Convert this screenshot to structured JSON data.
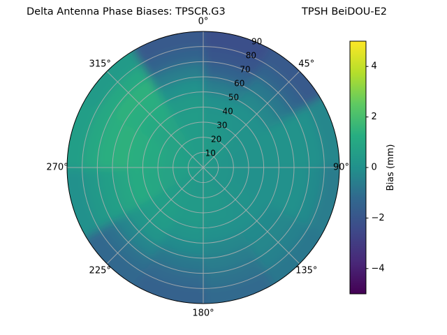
{
  "chart_data": {
    "type": "heatmap",
    "projection": "polar",
    "title_left": "Delta Antenna Phase Biases: TPSCR.G3",
    "title_right": "TPSH BeiDOU-E2",
    "colorbar": {
      "label": "Bias (mm)",
      "range": [
        -5,
        5
      ],
      "colormap": "viridis",
      "stops": [
        "#440154",
        "#482878",
        "#3e4989",
        "#31688e",
        "#21918c",
        "#27ad81",
        "#5ec962",
        "#b5de2b",
        "#fde725"
      ],
      "ticks": [
        {
          "value": 4,
          "label": "4"
        },
        {
          "value": 2,
          "label": "2"
        },
        {
          "value": 0,
          "label": "0"
        },
        {
          "value": -2,
          "label": "−2"
        },
        {
          "value": -4,
          "label": "−4"
        }
      ]
    },
    "azimuth_tick_labels": [
      {
        "deg": 0,
        "label": "0°"
      },
      {
        "deg": 45,
        "label": "45°"
      },
      {
        "deg": 90,
        "label": "90°"
      },
      {
        "deg": 135,
        "label": "135°"
      },
      {
        "deg": 180,
        "label": "180°"
      },
      {
        "deg": 225,
        "label": "225°"
      },
      {
        "deg": 270,
        "label": "270°"
      },
      {
        "deg": 315,
        "label": "315°"
      }
    ],
    "radial_tick_labels": [
      {
        "r": 10,
        "label": "10"
      },
      {
        "r": 20,
        "label": "20"
      },
      {
        "r": 30,
        "label": "30"
      },
      {
        "r": 40,
        "label": "40"
      },
      {
        "r": 50,
        "label": "50"
      },
      {
        "r": 60,
        "label": "60"
      },
      {
        "r": 70,
        "label": "70"
      },
      {
        "r": 80,
        "label": "80"
      },
      {
        "r": 90,
        "label": "90"
      }
    ],
    "radial_label_azimuth_deg": 22.5,
    "azimuth_bin_edges_deg": [
      0,
      30,
      60,
      90,
      120,
      150,
      180,
      210,
      240,
      270,
      300,
      330,
      360
    ],
    "radial_bin_edges_deg": [
      0,
      10,
      20,
      30,
      40,
      50,
      60,
      70,
      80,
      90
    ],
    "bias_values_mm": [
      [
        0.4,
        0.4,
        0.3,
        0.3,
        0.3,
        0.3,
        0.3,
        0.4,
        0.5,
        0.5,
        0.5,
        0.4
      ],
      [
        0.4,
        0.3,
        0.2,
        0.2,
        0.2,
        0.3,
        0.3,
        0.4,
        0.6,
        0.7,
        0.6,
        0.5
      ],
      [
        0.3,
        0.2,
        0.1,
        0.1,
        0.2,
        0.3,
        0.4,
        0.5,
        0.8,
        0.9,
        0.8,
        0.5
      ],
      [
        0.2,
        0.1,
        0.1,
        0.0,
        0.1,
        0.2,
        0.4,
        0.6,
        1.0,
        1.1,
        0.9,
        0.5
      ],
      [
        0.0,
        0.0,
        0.1,
        0.0,
        0.0,
        0.0,
        0.2,
        0.5,
        1.1,
        1.3,
        1.1,
        0.4
      ],
      [
        -0.6,
        -0.3,
        0.1,
        0.0,
        -0.2,
        -0.3,
        -0.2,
        0.2,
        0.9,
        1.4,
        1.3,
        0.0
      ],
      [
        -1.4,
        -0.8,
        0.1,
        0.0,
        -0.3,
        -0.6,
        -0.8,
        -0.4,
        0.6,
        1.3,
        1.4,
        -0.6
      ],
      [
        -2.0,
        -1.4,
        0.0,
        -0.2,
        -0.5,
        -0.9,
        -1.2,
        -1.0,
        0.3,
        1.0,
        1.0,
        -1.4
      ],
      [
        -2.2,
        -1.8,
        -0.3,
        -0.6,
        -0.8,
        -1.2,
        -1.5,
        -1.3,
        0.0,
        0.6,
        0.4,
        -1.8
      ]
    ]
  }
}
